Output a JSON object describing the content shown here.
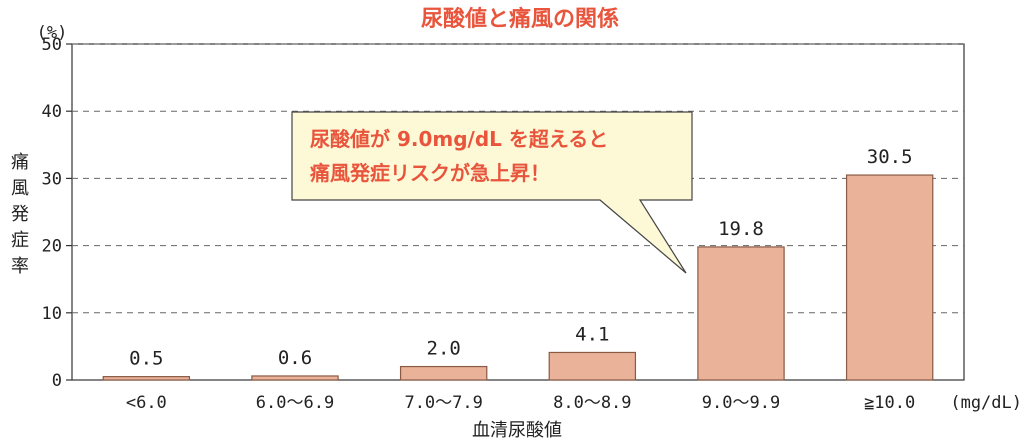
{
  "chart_data": {
    "type": "bar",
    "title": "尿酸値と痛風の関係",
    "categories": [
      "<6.0",
      "6.0～6.9",
      "7.0～7.9",
      "8.0～8.9",
      "9.0～9.9",
      "≧10.0"
    ],
    "values": [
      0.5,
      0.6,
      2.0,
      4.1,
      19.8,
      30.5
    ],
    "value_labels": [
      "0.5",
      "0.6",
      "2.0",
      "4.1",
      "19.8",
      "30.5"
    ],
    "xlabel": "血清尿酸値",
    "x_unit": "(mg/dL)",
    "ylabel": "痛風発症率",
    "y_unit": "(%)",
    "ylim": [
      0,
      50
    ],
    "yticks": [
      0,
      10,
      20,
      30,
      40,
      50
    ],
    "grid": true,
    "bar_color": "#e9b299",
    "bar_stroke": "#8a5a45",
    "annotation": {
      "lines": [
        "尿酸値が 9.0mg/dL を超えると",
        "痛風発症リスクが急上昇！"
      ],
      "fill": "#fdf8d6",
      "text_color": "#e8553c"
    }
  }
}
